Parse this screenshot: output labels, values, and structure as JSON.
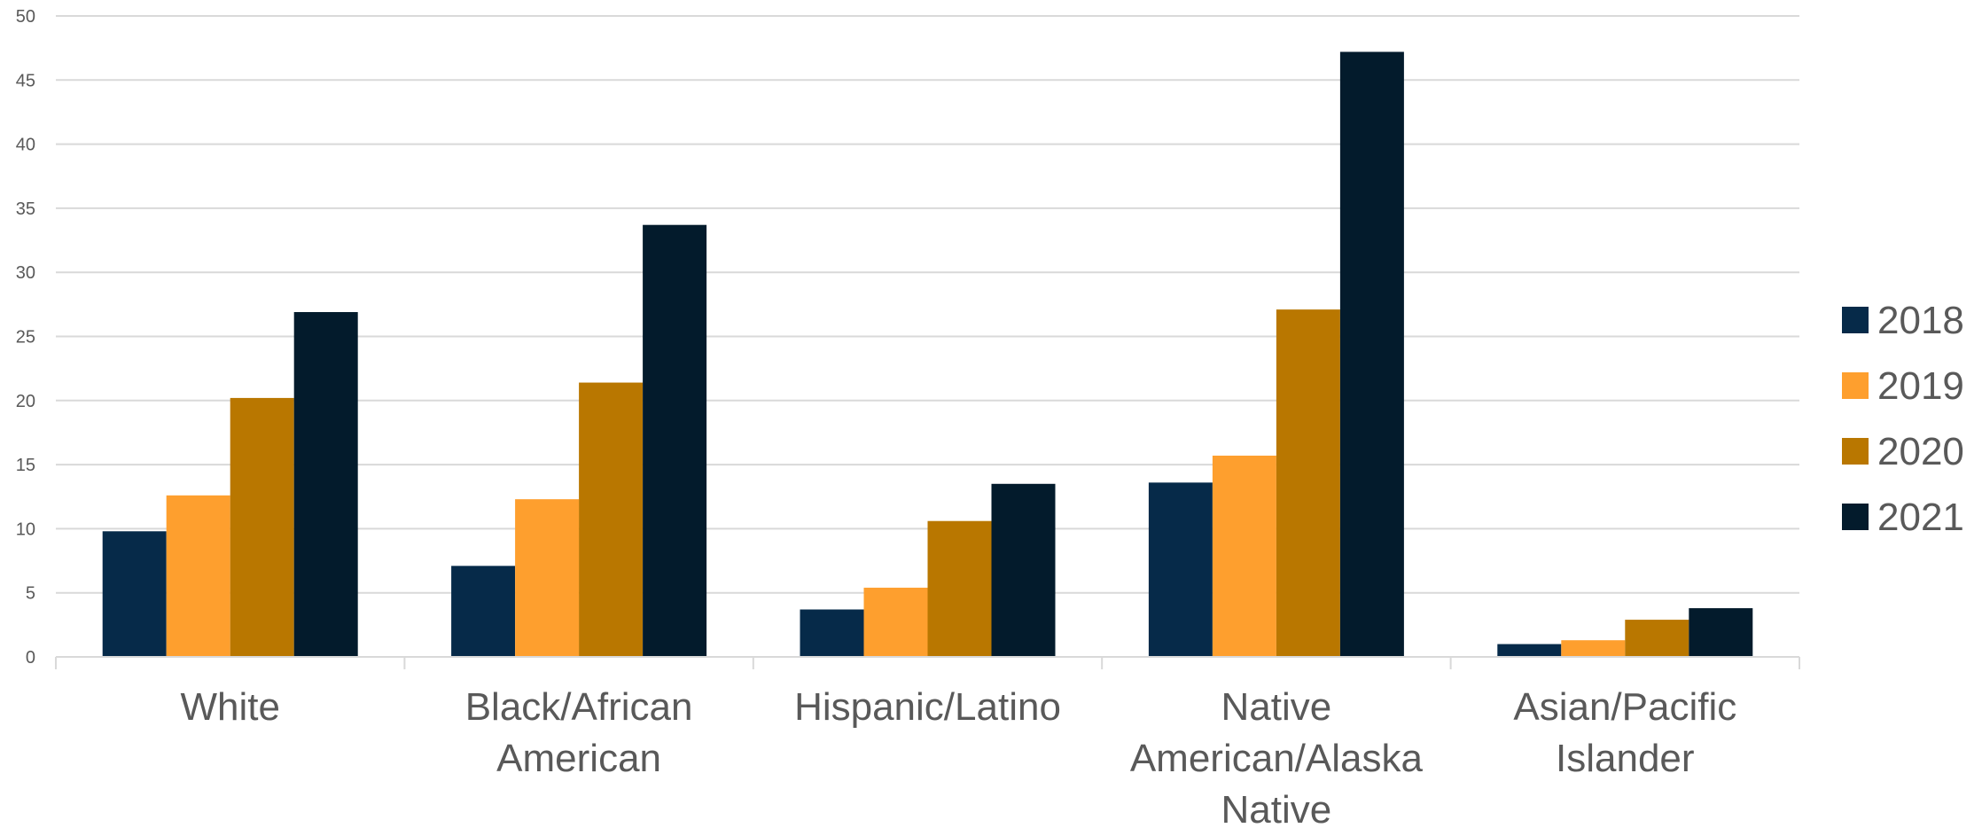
{
  "chart_data": {
    "type": "bar",
    "categories": [
      [
        "White"
      ],
      [
        "Black/African",
        "American"
      ],
      [
        "Hispanic/Latino"
      ],
      [
        "Native",
        "American/Alaska",
        "Native"
      ],
      [
        "Asian/Pacific",
        "Islander"
      ]
    ],
    "series": [
      {
        "name": "2018",
        "color": "#062a49",
        "values": [
          9.8,
          7.1,
          3.7,
          13.6,
          1.0
        ]
      },
      {
        "name": "2019",
        "color": "#fe9f2e",
        "values": [
          12.6,
          12.3,
          5.4,
          15.7,
          1.3
        ]
      },
      {
        "name": "2020",
        "color": "#b97700",
        "values": [
          20.2,
          21.4,
          10.6,
          27.1,
          2.9
        ]
      },
      {
        "name": "2021",
        "color": "#031b2c",
        "values": [
          26.9,
          33.7,
          13.5,
          47.2,
          3.8
        ]
      }
    ],
    "ylim": [
      0,
      50
    ],
    "yticks": [
      0,
      5,
      10,
      15,
      20,
      25,
      30,
      35,
      40,
      45,
      50
    ],
    "grid": true,
    "legend_position": "right"
  }
}
